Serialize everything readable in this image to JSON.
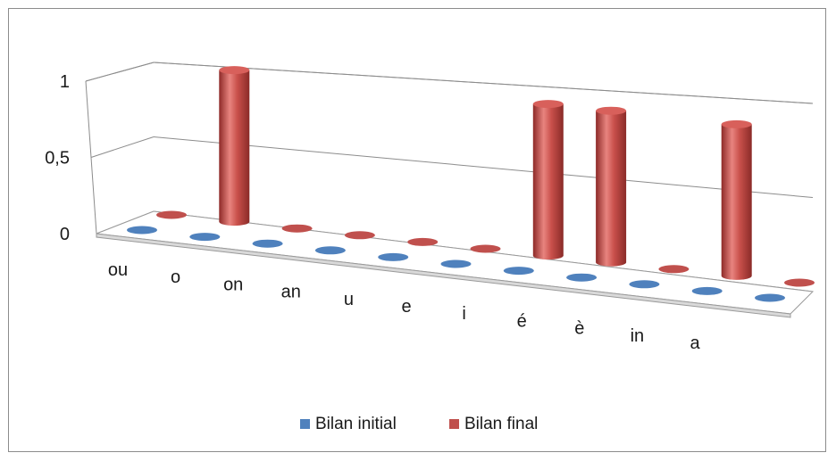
{
  "chart_data": {
    "type": "bar",
    "subtype": "3d-cylinder",
    "title": "",
    "xlabel": "",
    "ylabel": "",
    "categories": [
      "ou",
      "o",
      "on",
      "an",
      "u",
      "e",
      "i",
      "é",
      "è",
      "in",
      "a"
    ],
    "series": [
      {
        "name": "Bilan initial",
        "color": "#4f81bd",
        "values": [
          0,
          0,
          0,
          0,
          0,
          0,
          0,
          0,
          0,
          0,
          0
        ]
      },
      {
        "name": "Bilan final",
        "color": "#c0504d",
        "values": [
          0,
          1,
          0,
          0,
          0,
          0,
          1,
          1,
          0,
          1,
          0
        ]
      }
    ],
    "ylim": [
      0,
      1
    ],
    "yticks": [
      "0",
      "0,5",
      "1"
    ],
    "grid": true,
    "legend": "bottom"
  }
}
